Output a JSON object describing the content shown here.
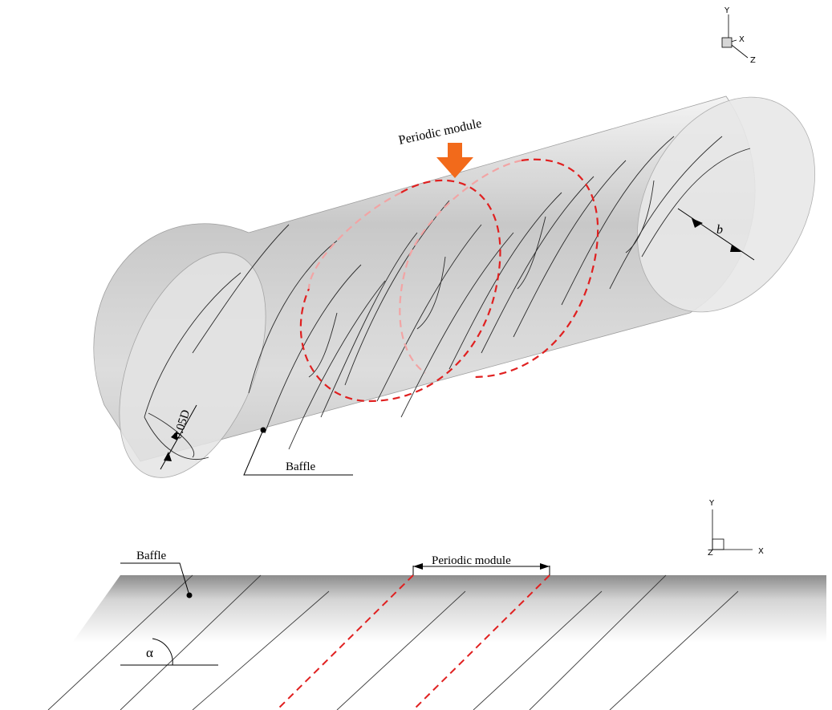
{
  "top_view": {
    "periodic_module_label": "Periodic module",
    "baffle_label": "Baffle",
    "gap_label": "0.05D",
    "width_label": "b",
    "axes": {
      "y": "Y",
      "x": "X",
      "z": "Z"
    },
    "module_outline_color": "#e02020",
    "arrow_color": "#f26a1b"
  },
  "side_view": {
    "baffle_label": "Baffle",
    "periodic_module_label": "Periodic module",
    "angle_label": "α",
    "axes": {
      "y": "Y",
      "x": "X",
      "z": "Z"
    },
    "module_line_color": "#e02020"
  }
}
